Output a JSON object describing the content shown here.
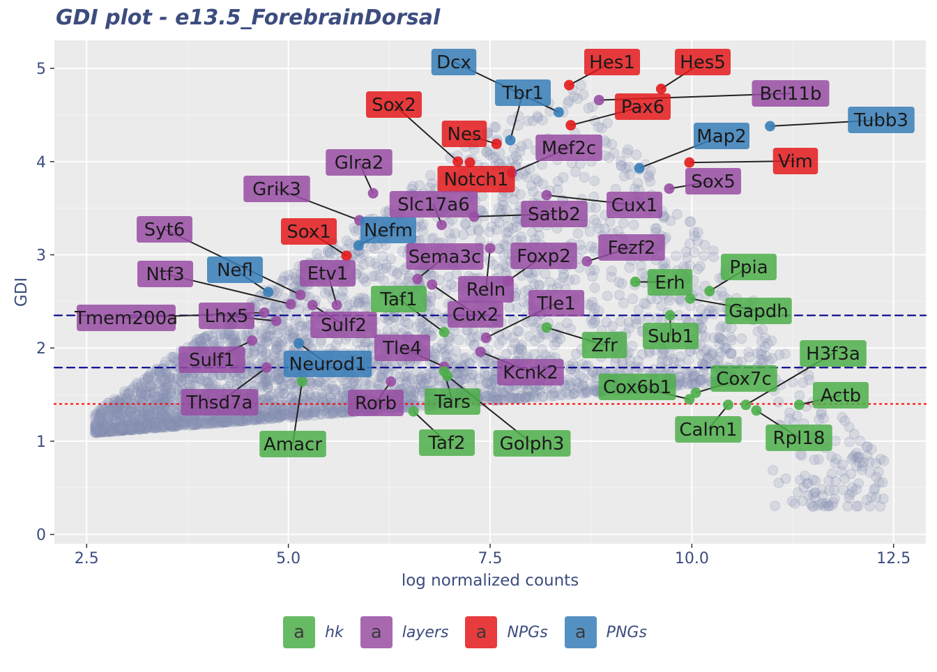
{
  "chart_data": {
    "type": "scatter",
    "title": "GDI plot - e13.5_ForebrainDorsal",
    "xlabel": "log normalized counts",
    "ylabel": "GDI",
    "xlim": [
      2.1,
      12.9
    ],
    "ylim": [
      -0.1,
      5.3
    ],
    "x_ticks": [
      2.5,
      5.0,
      7.5,
      10.0,
      12.5
    ],
    "x_tick_labels": [
      "2.5",
      "5.0",
      "7.5",
      "10.0",
      "12.5"
    ],
    "y_ticks": [
      0,
      1,
      2,
      3,
      4,
      5
    ],
    "y_tick_labels": [
      "0",
      "1",
      "2",
      "3",
      "4",
      "5"
    ],
    "grid": true,
    "legend_position": "bottom",
    "reference_lines": [
      {
        "y": 2.35,
        "style": "dashed",
        "color": "#00008B"
      },
      {
        "y": 1.79,
        "style": "dashed",
        "color": "#00008B"
      },
      {
        "y": 1.4,
        "style": "dotted",
        "color": "#FF0000"
      }
    ],
    "background_points": {
      "color": "#8B94B6",
      "description_count_hint": "dense cloud"
    },
    "categories": [
      {
        "name": "hk",
        "color": "#4DAF4A"
      },
      {
        "name": "layers",
        "color": "#984EA3"
      },
      {
        "name": "NPGs",
        "color": "#E41A1C"
      },
      {
        "name": "PNGs",
        "color": "#377EB8"
      }
    ],
    "genes": [
      {
        "label": "Dcx",
        "cat": "PNGs",
        "x": 8.35,
        "y": 4.53
      },
      {
        "label": "Tbr1",
        "cat": "PNGs",
        "x": 7.75,
        "y": 4.23
      },
      {
        "label": "Map2",
        "cat": "PNGs",
        "x": 9.35,
        "y": 3.93
      },
      {
        "label": "Tubb3",
        "cat": "PNGs",
        "x": 10.97,
        "y": 4.38
      },
      {
        "label": "Nefm",
        "cat": "PNGs",
        "x": 5.87,
        "y": 3.1
      },
      {
        "label": "Nefl",
        "cat": "PNGs",
        "x": 4.75,
        "y": 2.6
      },
      {
        "label": "Neurod1",
        "cat": "PNGs",
        "x": 5.13,
        "y": 2.05
      },
      {
        "label": "Hes1",
        "cat": "NPGs",
        "x": 8.48,
        "y": 4.82
      },
      {
        "label": "Hes5",
        "cat": "NPGs",
        "x": 9.62,
        "y": 4.78
      },
      {
        "label": "Pax6",
        "cat": "NPGs",
        "x": 8.5,
        "y": 4.39
      },
      {
        "label": "Sox2",
        "cat": "NPGs",
        "x": 7.1,
        "y": 4.0
      },
      {
        "label": "Nes",
        "cat": "NPGs",
        "x": 7.58,
        "y": 4.19
      },
      {
        "label": "Notch1",
        "cat": "NPGs",
        "x": 7.25,
        "y": 3.99
      },
      {
        "label": "Vim",
        "cat": "NPGs",
        "x": 9.97,
        "y": 3.99
      },
      {
        "label": "Sox1",
        "cat": "NPGs",
        "x": 5.72,
        "y": 2.99
      },
      {
        "label": "Bcl11b",
        "cat": "layers",
        "x": 8.85,
        "y": 4.66
      },
      {
        "label": "Mef2c",
        "cat": "layers",
        "x": 7.77,
        "y": 3.88
      },
      {
        "label": "Sox5",
        "cat": "layers",
        "x": 9.72,
        "y": 3.71
      },
      {
        "label": "Glra2",
        "cat": "layers",
        "x": 6.05,
        "y": 3.66
      },
      {
        "label": "Cux1",
        "cat": "layers",
        "x": 8.2,
        "y": 3.64
      },
      {
        "label": "Grik3",
        "cat": "layers",
        "x": 5.88,
        "y": 3.37
      },
      {
        "label": "Slc17a6",
        "cat": "layers",
        "x": 6.9,
        "y": 3.32
      },
      {
        "label": "Satb2",
        "cat": "layers",
        "x": 7.3,
        "y": 3.41
      },
      {
        "label": "Syt6",
        "cat": "layers",
        "x": 5.15,
        "y": 2.57
      },
      {
        "label": "Fezf2",
        "cat": "layers",
        "x": 8.7,
        "y": 2.93
      },
      {
        "label": "Sema3c",
        "cat": "layers",
        "x": 6.6,
        "y": 2.74
      },
      {
        "label": "Foxp2",
        "cat": "layers",
        "x": 7.72,
        "y": 2.72
      },
      {
        "label": "Ntf3",
        "cat": "layers",
        "x": 5.03,
        "y": 2.47
      },
      {
        "label": "Etv1",
        "cat": "layers",
        "x": 5.6,
        "y": 2.46
      },
      {
        "label": "Reln",
        "cat": "layers",
        "x": 7.5,
        "y": 3.07
      },
      {
        "label": "Tmem200a",
        "cat": "layers",
        "x": 4.7,
        "y": 2.38
      },
      {
        "label": "Lhx5",
        "cat": "layers",
        "x": 4.85,
        "y": 2.29
      },
      {
        "label": "Cux2",
        "cat": "layers",
        "x": 6.78,
        "y": 2.68
      },
      {
        "label": "Tle1",
        "cat": "layers",
        "x": 7.45,
        "y": 2.11
      },
      {
        "label": "Sulf2",
        "cat": "layers",
        "x": 5.3,
        "y": 2.46
      },
      {
        "label": "Tle4",
        "cat": "layers",
        "x": 6.93,
        "y": 1.8
      },
      {
        "label": "Sulf1",
        "cat": "layers",
        "x": 4.55,
        "y": 2.08
      },
      {
        "label": "Kcnk2",
        "cat": "layers",
        "x": 7.38,
        "y": 1.96
      },
      {
        "label": "Thsd7a",
        "cat": "layers",
        "x": 4.73,
        "y": 1.79
      },
      {
        "label": "Rorb",
        "cat": "layers",
        "x": 6.27,
        "y": 1.64
      },
      {
        "label": "Ppia",
        "cat": "hk",
        "x": 10.22,
        "y": 2.61
      },
      {
        "label": "Erh",
        "cat": "hk",
        "x": 9.3,
        "y": 2.71
      },
      {
        "label": "Gapdh",
        "cat": "hk",
        "x": 9.98,
        "y": 2.53
      },
      {
        "label": "Taf1",
        "cat": "hk",
        "x": 6.93,
        "y": 2.17
      },
      {
        "label": "Sub1",
        "cat": "hk",
        "x": 9.73,
        "y": 2.35
      },
      {
        "label": "Zfr",
        "cat": "hk",
        "x": 8.2,
        "y": 2.22
      },
      {
        "label": "H3f3a",
        "cat": "hk",
        "x": 10.67,
        "y": 1.39
      },
      {
        "label": "Cox7c",
        "cat": "hk",
        "x": 10.05,
        "y": 1.52
      },
      {
        "label": "Cox6b1",
        "cat": "hk",
        "x": 9.97,
        "y": 1.45
      },
      {
        "label": "Actb",
        "cat": "hk",
        "x": 11.33,
        "y": 1.39
      },
      {
        "label": "Tars",
        "cat": "hk",
        "x": 6.93,
        "y": 1.75
      },
      {
        "label": "Calm1",
        "cat": "hk",
        "x": 10.45,
        "y": 1.39
      },
      {
        "label": "Rpl18",
        "cat": "hk",
        "x": 10.8,
        "y": 1.33
      },
      {
        "label": "Amacr",
        "cat": "hk",
        "x": 5.17,
        "y": 1.64
      },
      {
        "label": "Taf2",
        "cat": "hk",
        "x": 6.55,
        "y": 1.32
      },
      {
        "label": "Golph3",
        "cat": "hk",
        "x": 6.97,
        "y": 1.7
      }
    ]
  },
  "legend": {
    "key_glyph": "a",
    "items": [
      {
        "label": "hk",
        "color": "#4DAF4A"
      },
      {
        "label": "layers",
        "color": "#984EA3"
      },
      {
        "label": "NPGs",
        "color": "#E41A1C"
      },
      {
        "label": "PNGs",
        "color": "#377EB8"
      }
    ]
  }
}
